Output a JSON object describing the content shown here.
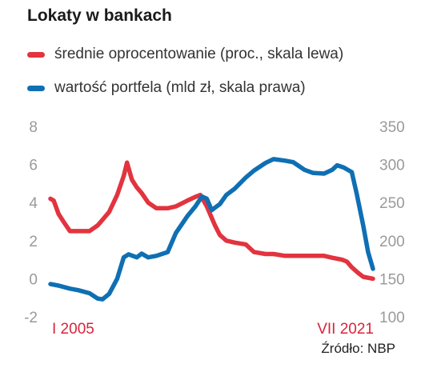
{
  "title": "Lokaty w bankach",
  "source": "Źródło: NBP",
  "colors": {
    "red": "#e2343f",
    "blue": "#0f6fb3",
    "axis_text": "#9a9a9a",
    "accent_label": "#d9233a"
  },
  "chart_data": {
    "type": "line",
    "title": "Lokaty w bankach",
    "x_range": [
      "2005-01",
      "2021-07"
    ],
    "x_labels": [
      "I 2005",
      "VII 2021"
    ],
    "y_left": {
      "range": [
        -2,
        8
      ],
      "ticks": [
        "-2",
        "0",
        "2",
        "4",
        "6",
        "8"
      ]
    },
    "y_right": {
      "range": [
        100,
        350
      ],
      "ticks": [
        "100",
        "150",
        "200",
        "250",
        "300",
        "350"
      ]
    },
    "grid": false,
    "legend_position": "top-left",
    "series": [
      {
        "name": "średnie oprocentowanie (proc., skala lewa)",
        "axis": "left",
        "color": "#e2343f",
        "points": [
          [
            "2005-01",
            4.2
          ],
          [
            "2005-03",
            4.1
          ],
          [
            "2005-06",
            3.4
          ],
          [
            "2005-09",
            3.0
          ],
          [
            "2006-01",
            2.5
          ],
          [
            "2006-06",
            2.5
          ],
          [
            "2007-01",
            2.5
          ],
          [
            "2007-06",
            2.8
          ],
          [
            "2008-01",
            3.5
          ],
          [
            "2008-06",
            4.4
          ],
          [
            "2008-10",
            5.4
          ],
          [
            "2008-12",
            6.1
          ],
          [
            "2009-03",
            5.2
          ],
          [
            "2009-06",
            4.8
          ],
          [
            "2009-09",
            4.5
          ],
          [
            "2010-01",
            4.0
          ],
          [
            "2010-06",
            3.7
          ],
          [
            "2011-01",
            3.7
          ],
          [
            "2011-06",
            3.8
          ],
          [
            "2012-01",
            4.1
          ],
          [
            "2012-06",
            4.3
          ],
          [
            "2012-09",
            4.4
          ],
          [
            "2013-01",
            3.8
          ],
          [
            "2013-06",
            2.8
          ],
          [
            "2013-09",
            2.3
          ],
          [
            "2014-01",
            2.0
          ],
          [
            "2014-06",
            1.9
          ],
          [
            "2015-01",
            1.8
          ],
          [
            "2015-06",
            1.4
          ],
          [
            "2016-01",
            1.3
          ],
          [
            "2016-06",
            1.3
          ],
          [
            "2017-01",
            1.2
          ],
          [
            "2017-06",
            1.2
          ],
          [
            "2018-01",
            1.2
          ],
          [
            "2018-06",
            1.2
          ],
          [
            "2019-01",
            1.2
          ],
          [
            "2019-06",
            1.1
          ],
          [
            "2019-12",
            1.0
          ],
          [
            "2020-03",
            0.9
          ],
          [
            "2020-06",
            0.6
          ],
          [
            "2020-10",
            0.3
          ],
          [
            "2021-01",
            0.1
          ],
          [
            "2021-07",
            0.0
          ]
        ]
      },
      {
        "name": "wartość portfela (mld zł, skala prawa)",
        "axis": "right",
        "color": "#0f6fb3",
        "points": [
          [
            "2005-01",
            143
          ],
          [
            "2005-06",
            141
          ],
          [
            "2006-01",
            137
          ],
          [
            "2006-06",
            135
          ],
          [
            "2007-01",
            131
          ],
          [
            "2007-06",
            124
          ],
          [
            "2007-09",
            123
          ],
          [
            "2008-01",
            130
          ],
          [
            "2008-06",
            150
          ],
          [
            "2008-10",
            178
          ],
          [
            "2009-01",
            182
          ],
          [
            "2009-06",
            178
          ],
          [
            "2009-09",
            183
          ],
          [
            "2010-01",
            178
          ],
          [
            "2010-06",
            180
          ],
          [
            "2011-01",
            185
          ],
          [
            "2011-06",
            210
          ],
          [
            "2012-01",
            232
          ],
          [
            "2012-06",
            245
          ],
          [
            "2012-10",
            258
          ],
          [
            "2013-01",
            255
          ],
          [
            "2013-04",
            240
          ],
          [
            "2013-09",
            248
          ],
          [
            "2014-01",
            260
          ],
          [
            "2014-06",
            268
          ],
          [
            "2015-01",
            283
          ],
          [
            "2015-06",
            292
          ],
          [
            "2016-01",
            302
          ],
          [
            "2016-06",
            307
          ],
          [
            "2017-01",
            305
          ],
          [
            "2017-06",
            303
          ],
          [
            "2018-01",
            293
          ],
          [
            "2018-06",
            289
          ],
          [
            "2019-01",
            288
          ],
          [
            "2019-06",
            293
          ],
          [
            "2019-09",
            299
          ],
          [
            "2020-01",
            296
          ],
          [
            "2020-06",
            290
          ],
          [
            "2020-09",
            262
          ],
          [
            "2021-01",
            220
          ],
          [
            "2021-04",
            185
          ],
          [
            "2021-07",
            163
          ]
        ]
      }
    ]
  }
}
